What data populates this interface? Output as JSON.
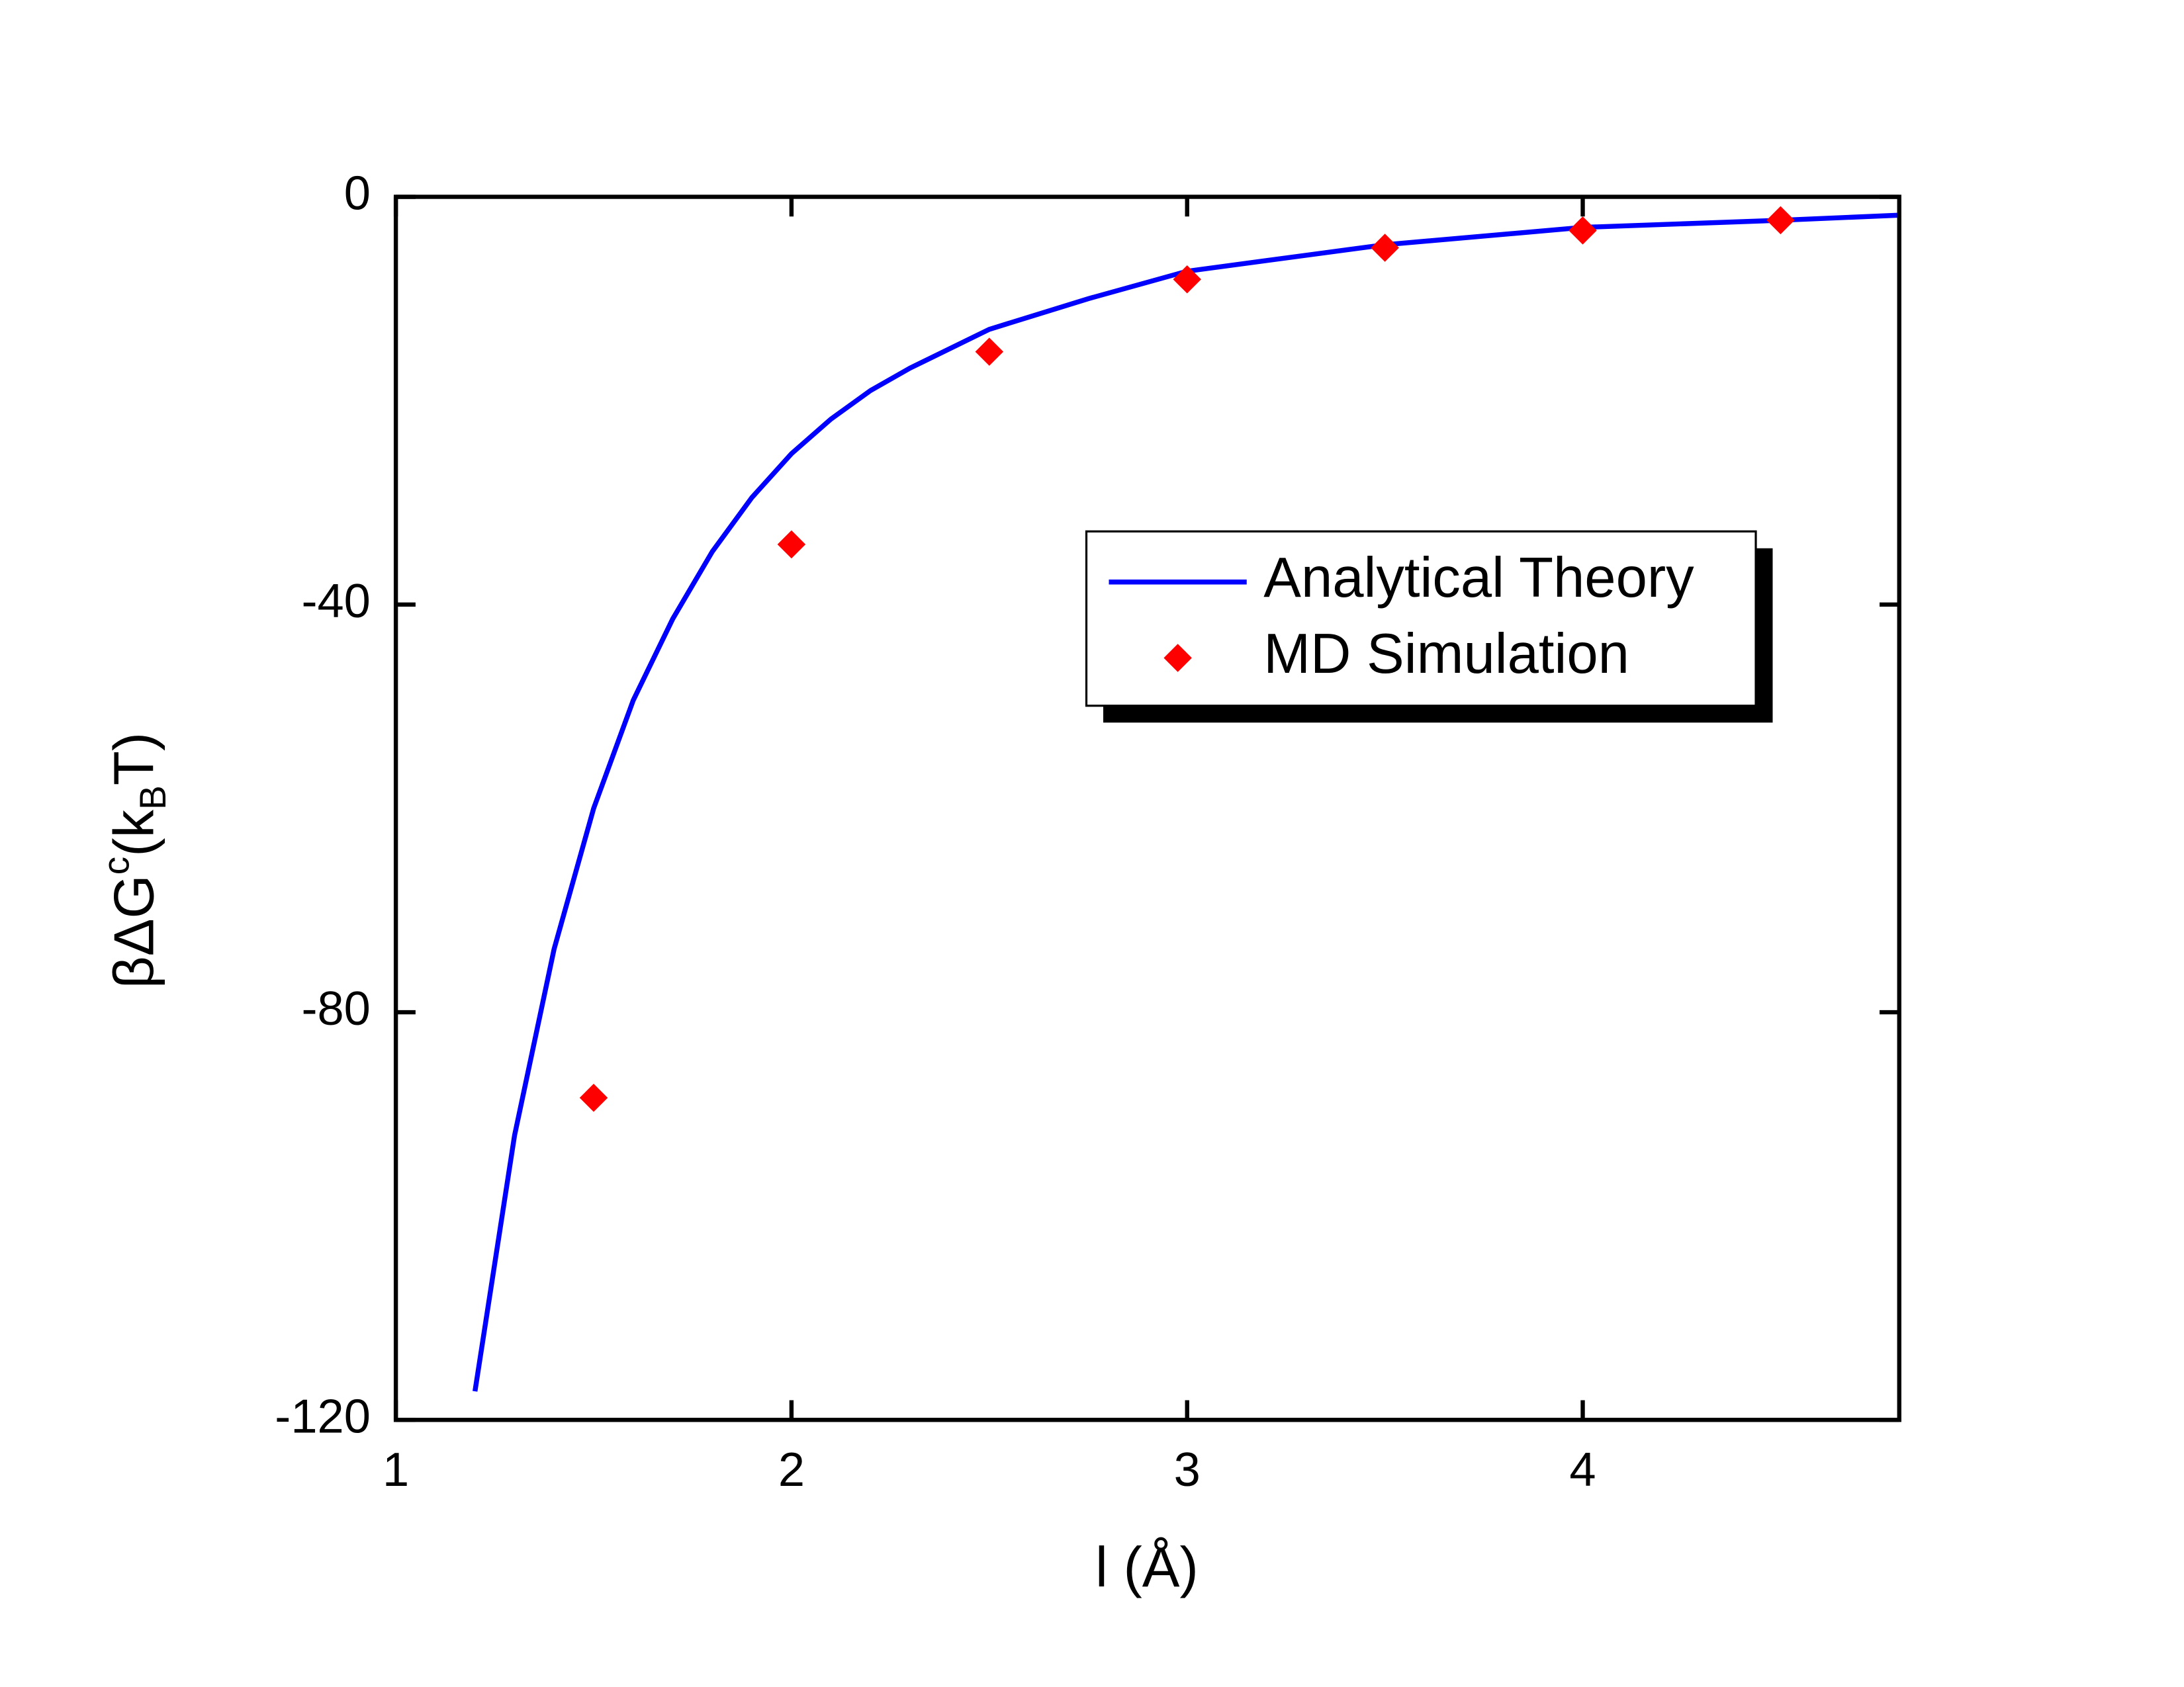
{
  "chart_data": {
    "type": "line",
    "x_label": "l (Å)",
    "y_label_parts": [
      "βΔG",
      "c",
      "(k",
      "B",
      "T)"
    ],
    "xlim": [
      1,
      4.8
    ],
    "xticks": [
      1,
      2,
      3,
      4
    ],
    "ylim": [
      -120,
      0
    ],
    "yticks": [
      0,
      -40,
      -80,
      -120
    ],
    "legend_position": "upper right",
    "series": [
      {
        "name": "Analytical Theory",
        "color": "#0000ff",
        "style": "line",
        "x": [
          1.2,
          1.3,
          1.4,
          1.5,
          1.6,
          1.7,
          1.8,
          1.9,
          2.0,
          2.1,
          2.2,
          2.3,
          2.5,
          2.75,
          3.0,
          3.5,
          4.0,
          4.5,
          4.8
        ],
        "values": [
          -117.2,
          -92.1,
          -73.8,
          -60,
          -49.4,
          -41.4,
          -34.8,
          -29.5,
          -25.2,
          -21.8,
          -19,
          -16.8,
          -13,
          -10,
          -7.3,
          -4.7,
          -3.0,
          -2.3,
          -1.8
        ]
      },
      {
        "name": "MD Simulation",
        "color": "#ff0000",
        "style": "marker",
        "x": [
          1.5,
          2.0,
          2.5,
          3.0,
          3.5,
          4.0,
          4.5
        ],
        "values": [
          -88.4,
          -34.1,
          -15.2,
          -8.1,
          -5.0,
          -3.3,
          -2.3
        ]
      }
    ]
  }
}
